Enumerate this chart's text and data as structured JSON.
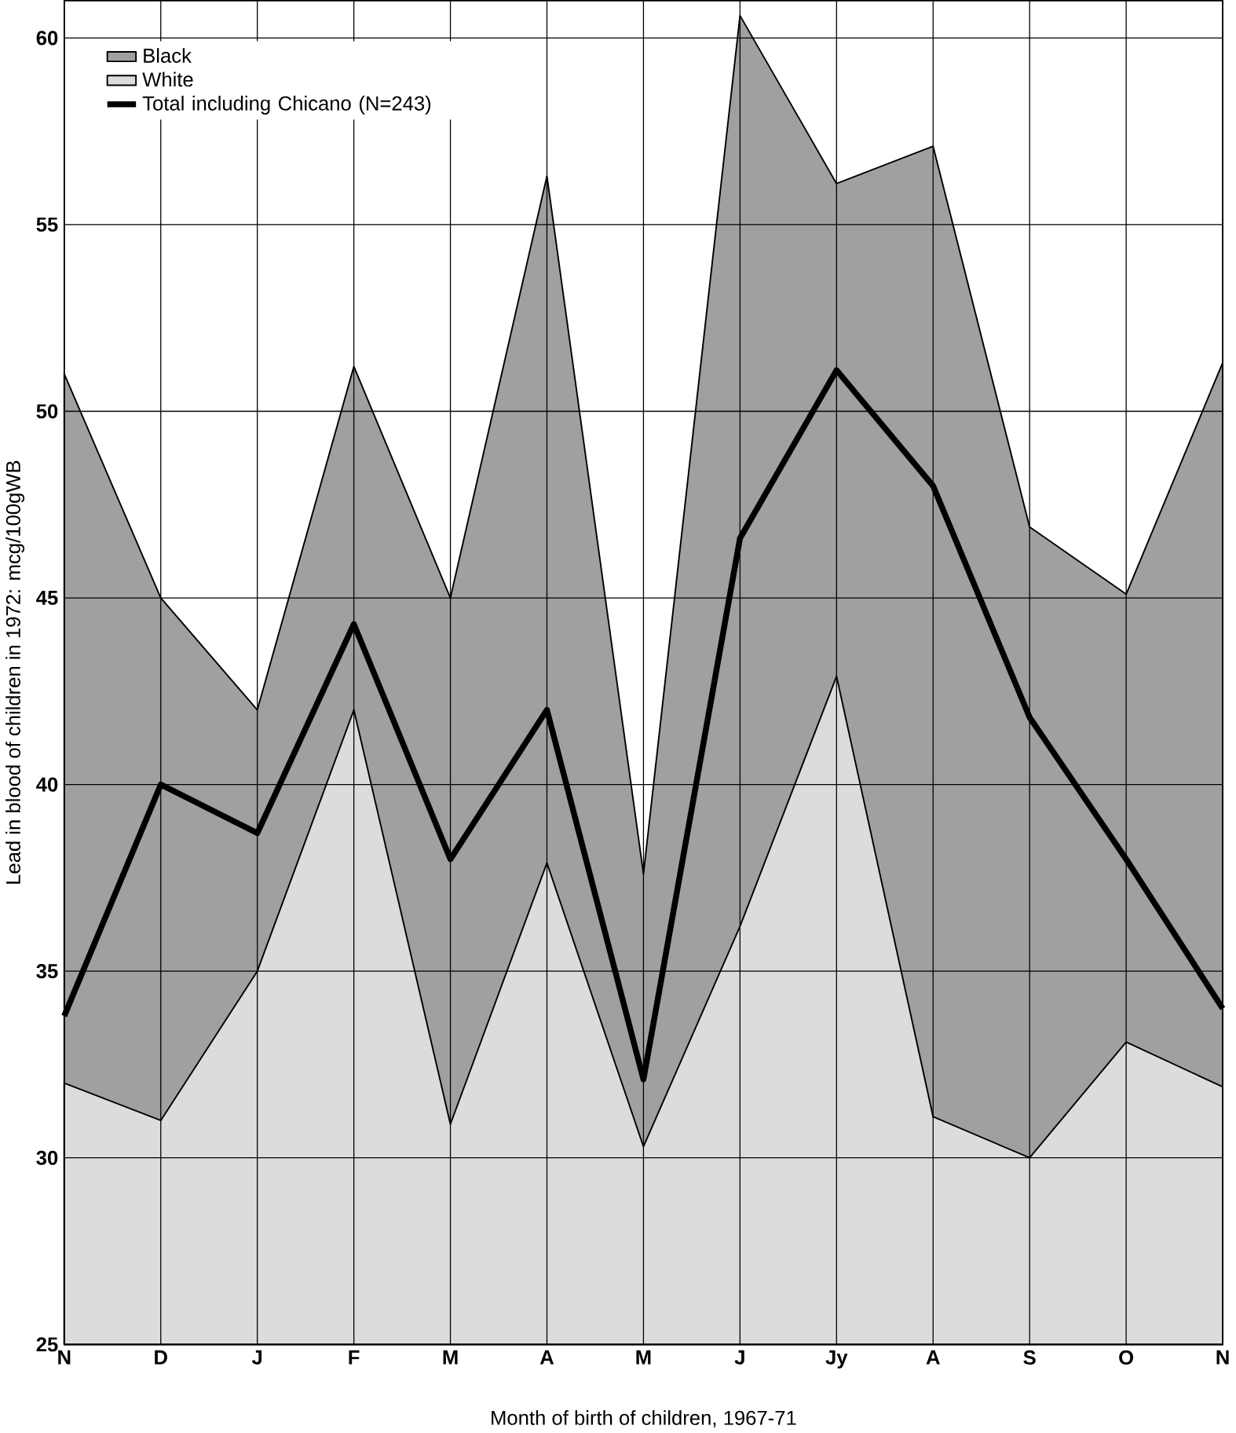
{
  "chart_data": {
    "type": "area",
    "xlabel": "Month of birth of children, 1967-71",
    "ylabel": "Lead in blood of children in 1972: mcg/100gWB",
    "categories": [
      "N",
      "D",
      "J",
      "F",
      "M",
      "A",
      "M",
      "J",
      "Jy",
      "A",
      "S",
      "O",
      "N"
    ],
    "series": [
      {
        "name": "Black",
        "color": "#a0a0a0",
        "values": [
          51,
          45,
          42,
          51.2,
          45,
          56.3,
          37.6,
          60.6,
          56.1,
          57.1,
          46.9,
          45.1,
          51.3
        ]
      },
      {
        "name": "White",
        "color": "#dcdcdc",
        "values": [
          32,
          31,
          35,
          42,
          30.9,
          37.9,
          30.3,
          36.2,
          42.9,
          31.1,
          30,
          33.1,
          31.9
        ]
      },
      {
        "name": "Total including Chicano (N=243)",
        "type": "line",
        "color": "#000000",
        "values": [
          33.8,
          40,
          38.7,
          44.3,
          38,
          42,
          32.1,
          46.6,
          51.1,
          48,
          41.8,
          38,
          34
        ]
      }
    ],
    "ylim": [
      25,
      61
    ],
    "yticks": [
      25,
      30,
      35,
      40,
      45,
      50,
      55,
      60
    ],
    "grid": true,
    "legend": "top left"
  }
}
